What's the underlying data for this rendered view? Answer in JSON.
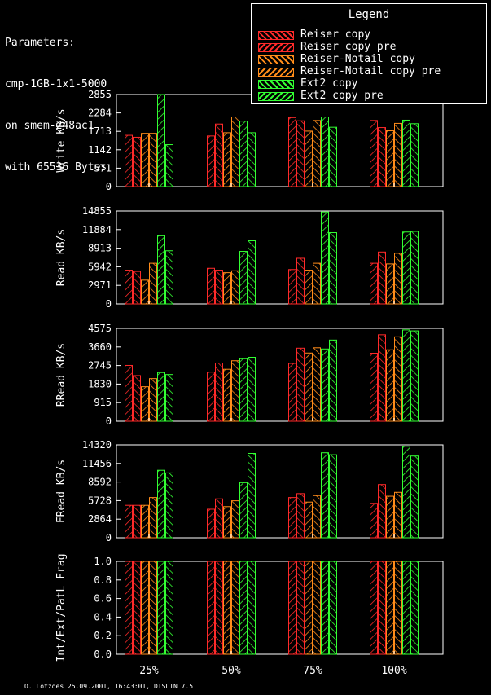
{
  "params": {
    "lines": [
      "Parameters:",
      "cmp-1GB-1x1-5000",
      "on smem-248ac1",
      "with 65536 Bytes"
    ]
  },
  "legend": {
    "title": "Legend",
    "items": [
      {
        "label": "Reiser copy",
        "color": "#ff2a2a"
      },
      {
        "label": "Reiser copy pre",
        "color": "#ff2a2a"
      },
      {
        "label": "Reiser-Notail copy",
        "color": "#ff8c1a"
      },
      {
        "label": "Reiser-Notail copy pre",
        "color": "#ff8c1a"
      },
      {
        "label": "Ext2 copy",
        "color": "#33ff33"
      },
      {
        "label": "Ext2 copy pre",
        "color": "#33ff33"
      }
    ]
  },
  "colors": {
    "reiser": "#ff2a2a",
    "notail": "#ff8c1a",
    "ext2": "#33ff33"
  },
  "footer": "O. Lotzdes 25.09.2001, 16:43:01, DISLIN 7.5",
  "chart_data": [
    {
      "type": "bar",
      "ylabel": "Write KB/s",
      "ylim": [
        0,
        2855
      ],
      "yticks": [
        0,
        571,
        1142,
        1713,
        2284,
        2855
      ],
      "categories": [
        "25%",
        "50%",
        "75%",
        "100%"
      ],
      "series": [
        {
          "name": "Reiser copy",
          "values": [
            1590,
            1570,
            2140,
            2050
          ]
        },
        {
          "name": "Reiser copy pre",
          "values": [
            1530,
            1940,
            2040,
            1830
          ]
        },
        {
          "name": "Reiser-Notail copy",
          "values": [
            1650,
            1670,
            1720,
            1730
          ]
        },
        {
          "name": "Reiser-Notail copy pre",
          "values": [
            1650,
            2160,
            2050,
            1960
          ]
        },
        {
          "name": "Ext2 copy",
          "values": [
            2855,
            2030,
            2160,
            2060
          ]
        },
        {
          "name": "Ext2 copy pre",
          "values": [
            1300,
            1670,
            1840,
            1950
          ]
        }
      ]
    },
    {
      "type": "bar",
      "ylabel": "Read KB/s",
      "ylim": [
        0,
        14855
      ],
      "yticks": [
        0,
        2971,
        5942,
        8913,
        11884,
        14855
      ],
      "categories": [
        "25%",
        "50%",
        "75%",
        "100%"
      ],
      "series": [
        {
          "name": "Reiser copy",
          "values": [
            5400,
            5700,
            5500,
            6500
          ]
        },
        {
          "name": "Reiser copy pre",
          "values": [
            5200,
            5400,
            7300,
            8300
          ]
        },
        {
          "name": "Reiser-Notail copy",
          "values": [
            3800,
            5000,
            5400,
            6400
          ]
        },
        {
          "name": "Reiser-Notail copy pre",
          "values": [
            6500,
            5300,
            6500,
            8100
          ]
        },
        {
          "name": "Ext2 copy",
          "values": [
            10900,
            8400,
            14700,
            11500
          ]
        },
        {
          "name": "Ext2 copy pre",
          "values": [
            8500,
            10100,
            11400,
            11600
          ]
        }
      ]
    },
    {
      "type": "bar",
      "ylabel": "RRead KB/s",
      "ylim": [
        0,
        4575
      ],
      "yticks": [
        0,
        915,
        1830,
        2745,
        3660,
        4575
      ],
      "categories": [
        "25%",
        "50%",
        "75%",
        "100%"
      ],
      "series": [
        {
          "name": "Reiser copy",
          "values": [
            2750,
            2420,
            2850,
            3350
          ]
        },
        {
          "name": "Reiser copy pre",
          "values": [
            2250,
            2870,
            3600,
            4260
          ]
        },
        {
          "name": "Reiser-Notail copy",
          "values": [
            1700,
            2560,
            3360,
            3520
          ]
        },
        {
          "name": "Reiser-Notail copy pre",
          "values": [
            2100,
            2980,
            3620,
            4160
          ]
        },
        {
          "name": "Ext2 copy",
          "values": [
            2400,
            3080,
            3560,
            4500
          ]
        },
        {
          "name": "Ext2 copy pre",
          "values": [
            2300,
            3150,
            4000,
            4450
          ]
        }
      ]
    },
    {
      "type": "bar",
      "ylabel": "FRead KB/s",
      "ylim": [
        0,
        14320
      ],
      "yticks": [
        0,
        2864,
        5728,
        8592,
        11456,
        14320
      ],
      "categories": [
        "25%",
        "50%",
        "75%",
        "100%"
      ],
      "series": [
        {
          "name": "Reiser copy",
          "values": [
            5000,
            4400,
            6200,
            5300
          ]
        },
        {
          "name": "Reiser copy pre",
          "values": [
            5000,
            6000,
            6800,
            8200
          ]
        },
        {
          "name": "Reiser-Notail copy",
          "values": [
            5000,
            4800,
            5500,
            6400
          ]
        },
        {
          "name": "Reiser-Notail copy pre",
          "values": [
            6200,
            5700,
            6500,
            7000
          ]
        },
        {
          "name": "Ext2 copy",
          "values": [
            10400,
            8500,
            13100,
            14100
          ]
        },
        {
          "name": "Ext2 copy pre",
          "values": [
            10000,
            13000,
            12800,
            12600
          ]
        }
      ]
    },
    {
      "type": "bar",
      "ylabel": "Int/Ext/PatL Frag",
      "ylim": [
        0,
        1.0
      ],
      "yticks": [
        0,
        0.2,
        0.4,
        0.6,
        0.8,
        1.0
      ],
      "categories": [
        "25%",
        "50%",
        "75%",
        "100%"
      ],
      "series": [
        {
          "name": "Reiser copy",
          "values": [
            1.0,
            1.0,
            1.0,
            1.0
          ]
        },
        {
          "name": "Reiser copy pre",
          "values": [
            1.0,
            1.0,
            1.0,
            1.0
          ]
        },
        {
          "name": "Reiser-Notail copy",
          "values": [
            1.0,
            1.0,
            1.0,
            1.0
          ]
        },
        {
          "name": "Reiser-Notail copy pre",
          "values": [
            1.0,
            1.0,
            1.0,
            1.0
          ]
        },
        {
          "name": "Ext2 copy",
          "values": [
            1.0,
            1.0,
            1.0,
            1.0
          ]
        },
        {
          "name": "Ext2 copy pre",
          "values": [
            1.0,
            1.0,
            1.0,
            1.0
          ]
        }
      ]
    }
  ]
}
